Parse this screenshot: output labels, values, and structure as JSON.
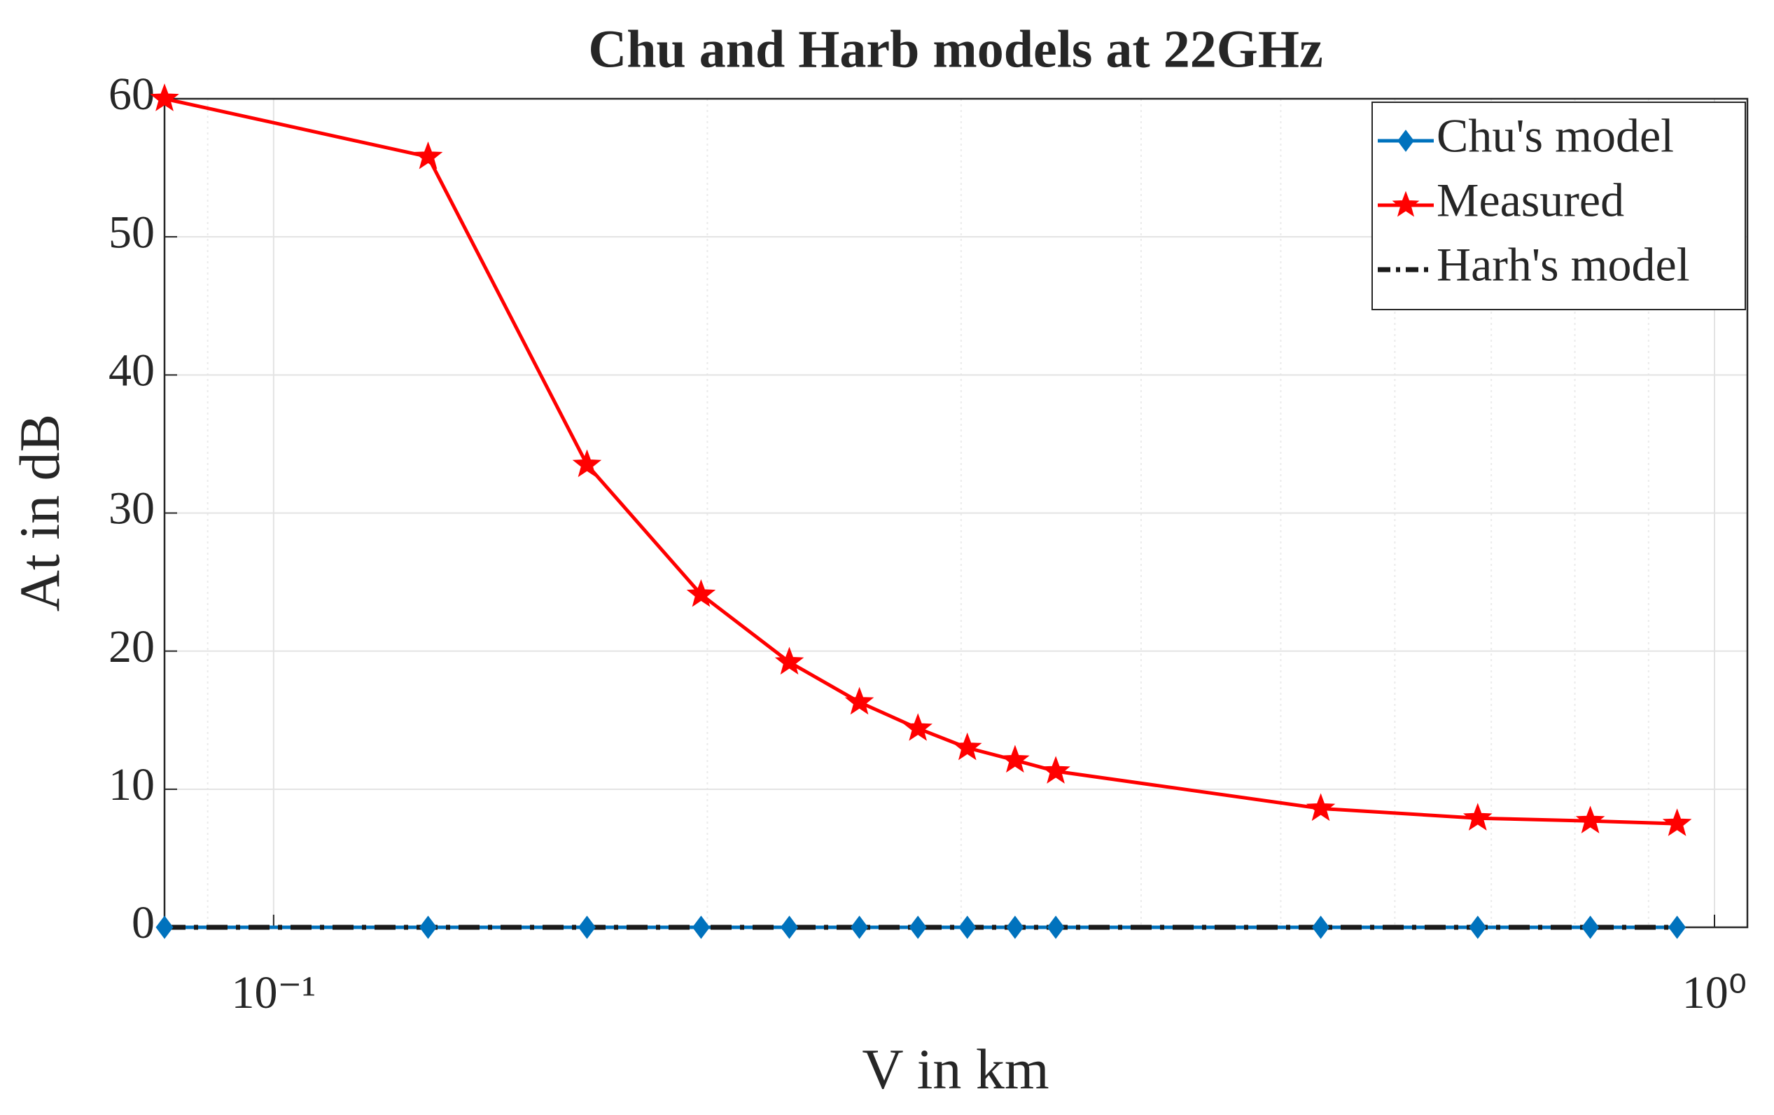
{
  "chart_data": {
    "type": "line",
    "title": "Chu and Harb models at 22GHz",
    "x_label": "V in km",
    "y_label": "At in dB",
    "x": [
      0.084,
      0.128,
      0.165,
      0.198,
      0.228,
      0.255,
      0.28,
      0.303,
      0.327,
      0.349,
      0.533,
      0.685,
      0.82,
      0.942
    ],
    "series": [
      {
        "name": "Chu's model",
        "color": "#0072bd",
        "line_style": "solid",
        "marker": "diamond",
        "values": [
          0,
          0,
          0,
          0,
          0,
          0,
          0,
          0,
          0,
          0,
          0,
          0,
          0,
          0
        ]
      },
      {
        "name": "Measured",
        "color": "#ff0000",
        "line_style": "solid",
        "marker": "star",
        "values": [
          60,
          55.8,
          33.5,
          24.1,
          19.2,
          16.3,
          14.4,
          13.0,
          12.1,
          11.3,
          8.6,
          7.9,
          7.7,
          7.5
        ]
      },
      {
        "name": "Harh's model",
        "color": "#1a1a1a",
        "line_style": "dashdot",
        "marker": "none",
        "values": [
          0,
          0,
          0,
          0,
          0,
          0,
          0,
          0,
          0,
          0,
          0,
          0,
          0,
          0
        ]
      }
    ],
    "x_scale": "log",
    "xlim": [
      0.084,
      1.054
    ],
    "xticks": [
      {
        "value": 0.1,
        "label": "10⁻¹"
      },
      {
        "value": 1,
        "label": "10⁰"
      }
    ],
    "xminorticks": [
      0.09,
      0.2,
      0.3,
      0.4,
      0.5,
      0.6,
      0.7,
      0.8,
      0.9
    ],
    "ylim": [
      0,
      60
    ],
    "yticks": [
      0,
      10,
      20,
      30,
      40,
      50,
      60
    ],
    "grid": true,
    "legend_position": "top-right"
  }
}
